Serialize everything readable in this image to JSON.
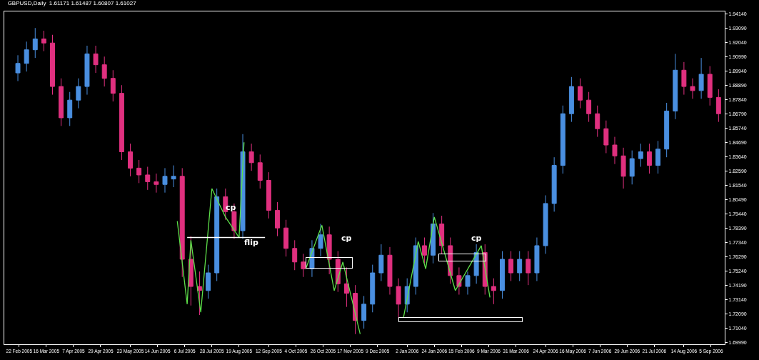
{
  "chart_data": {
    "type": "candlestick",
    "title": "GBPUSD,Daily  1.61171 1.61487 1.60807 1.61027",
    "x": [
      "2005-02-21",
      "2005-02-28",
      "2005-03-07",
      "2005-03-14",
      "2005-03-21",
      "2005-03-28",
      "2005-04-04",
      "2005-04-11",
      "2005-04-18",
      "2005-04-25",
      "2005-05-02",
      "2005-05-09",
      "2005-05-16",
      "2005-05-23",
      "2005-05-30",
      "2005-06-06",
      "2005-06-13",
      "2005-06-20",
      "2005-06-27",
      "2005-07-04",
      "2005-07-11",
      "2005-07-18",
      "2005-07-25",
      "2005-08-01",
      "2005-08-08",
      "2005-08-15",
      "2005-08-22",
      "2005-08-29",
      "2005-09-05",
      "2005-09-12",
      "2005-09-19",
      "2005-09-26",
      "2005-10-03",
      "2005-10-10",
      "2005-10-17",
      "2005-10-24",
      "2005-10-31",
      "2005-11-07",
      "2005-11-14",
      "2005-11-21",
      "2005-11-28",
      "2005-12-05",
      "2005-12-12",
      "2005-12-19",
      "2005-12-26",
      "2006-01-02",
      "2006-01-09",
      "2006-01-16",
      "2006-01-23",
      "2006-01-30",
      "2006-02-06",
      "2006-02-13",
      "2006-02-20",
      "2006-02-27",
      "2006-03-06",
      "2006-03-13",
      "2006-03-20",
      "2006-03-27",
      "2006-04-03",
      "2006-04-10",
      "2006-04-17",
      "2006-04-24",
      "2006-05-01",
      "2006-05-08",
      "2006-05-15",
      "2006-05-22",
      "2006-05-29",
      "2006-06-05",
      "2006-06-12",
      "2006-06-19",
      "2006-06-26",
      "2006-07-03",
      "2006-07-10",
      "2006-07-17",
      "2006-07-24",
      "2006-07-31",
      "2006-08-07",
      "2006-08-14",
      "2006-08-21",
      "2006-08-28",
      "2006-09-04",
      "2006-09-11"
    ],
    "ohlc": [
      [
        1.898,
        1.911,
        1.892,
        1.905
      ],
      [
        1.905,
        1.921,
        1.899,
        1.915
      ],
      [
        1.915,
        1.931,
        1.909,
        1.923
      ],
      [
        1.923,
        1.929,
        1.914,
        1.92
      ],
      [
        1.92,
        1.926,
        1.882,
        1.888
      ],
      [
        1.888,
        1.894,
        1.859,
        1.865
      ],
      [
        1.865,
        1.884,
        1.859,
        1.878
      ],
      [
        1.878,
        1.894,
        1.872,
        1.888
      ],
      [
        1.888,
        1.918,
        1.882,
        1.912
      ],
      [
        1.912,
        1.918,
        1.898,
        1.904
      ],
      [
        1.904,
        1.91,
        1.888,
        1.894
      ],
      [
        1.894,
        1.9,
        1.877,
        1.883
      ],
      [
        1.883,
        1.889,
        1.834,
        1.84
      ],
      [
        1.84,
        1.846,
        1.822,
        1.828
      ],
      [
        1.828,
        1.834,
        1.817,
        1.823
      ],
      [
        1.823,
        1.829,
        1.812,
        1.818
      ],
      [
        1.818,
        1.824,
        1.81,
        1.816
      ],
      [
        1.816,
        1.828,
        1.81,
        1.822
      ],
      [
        1.82,
        1.83,
        1.814,
        1.822
      ],
      [
        1.822,
        1.828,
        1.748,
        1.761
      ],
      [
        1.761,
        1.778,
        1.727,
        1.741
      ],
      [
        1.741,
        1.752,
        1.72,
        1.738
      ],
      [
        1.738,
        1.757,
        1.732,
        1.751
      ],
      [
        1.751,
        1.813,
        1.745,
        1.807
      ],
      [
        1.807,
        1.813,
        1.79,
        1.796
      ],
      [
        1.796,
        1.802,
        1.776,
        1.782
      ],
      [
        1.782,
        1.853,
        1.776,
        1.84
      ],
      [
        1.84,
        1.846,
        1.826,
        1.832
      ],
      [
        1.832,
        1.838,
        1.813,
        1.819
      ],
      [
        1.819,
        1.825,
        1.791,
        1.797
      ],
      [
        1.797,
        1.803,
        1.778,
        1.784
      ],
      [
        1.784,
        1.79,
        1.763,
        1.769
      ],
      [
        1.769,
        1.775,
        1.753,
        1.759
      ],
      [
        1.759,
        1.765,
        1.748,
        1.754
      ],
      [
        1.754,
        1.775,
        1.748,
        1.769
      ],
      [
        1.769,
        1.787,
        1.763,
        1.779
      ],
      [
        1.779,
        1.785,
        1.75,
        1.761
      ],
      [
        1.761,
        1.767,
        1.737,
        1.743
      ],
      [
        1.743,
        1.755,
        1.726,
        1.736
      ],
      [
        1.736,
        1.742,
        1.706,
        1.716
      ],
      [
        1.716,
        1.734,
        1.71,
        1.728
      ],
      [
        1.728,
        1.757,
        1.722,
        1.751
      ],
      [
        1.751,
        1.772,
        1.745,
        1.764
      ],
      [
        1.764,
        1.77,
        1.735,
        1.741
      ],
      [
        1.741,
        1.747,
        1.718,
        1.728
      ],
      [
        1.728,
        1.747,
        1.722,
        1.741
      ],
      [
        1.741,
        1.777,
        1.735,
        1.771
      ],
      [
        1.771,
        1.777,
        1.758,
        1.764
      ],
      [
        1.764,
        1.795,
        1.758,
        1.787
      ],
      [
        1.787,
        1.793,
        1.765,
        1.771
      ],
      [
        1.771,
        1.777,
        1.743,
        1.749
      ],
      [
        1.749,
        1.755,
        1.735,
        1.741
      ],
      [
        1.741,
        1.752,
        1.735,
        1.749
      ],
      [
        1.749,
        1.772,
        1.743,
        1.766
      ],
      [
        1.766,
        1.772,
        1.735,
        1.741
      ],
      [
        1.741,
        1.747,
        1.728,
        1.738
      ],
      [
        1.738,
        1.767,
        1.732,
        1.761
      ],
      [
        1.761,
        1.767,
        1.745,
        1.751
      ],
      [
        1.751,
        1.767,
        1.745,
        1.761
      ],
      [
        1.761,
        1.767,
        1.742,
        1.751
      ],
      [
        1.751,
        1.777,
        1.745,
        1.771
      ],
      [
        1.771,
        1.808,
        1.765,
        1.802
      ],
      [
        1.802,
        1.836,
        1.796,
        1.83
      ],
      [
        1.83,
        1.874,
        1.824,
        1.868
      ],
      [
        1.868,
        1.895,
        1.862,
        1.888
      ],
      [
        1.888,
        1.894,
        1.872,
        1.878
      ],
      [
        1.878,
        1.884,
        1.862,
        1.868
      ],
      [
        1.868,
        1.874,
        1.851,
        1.857
      ],
      [
        1.857,
        1.863,
        1.839,
        1.845
      ],
      [
        1.845,
        1.851,
        1.831,
        1.837
      ],
      [
        1.837,
        1.843,
        1.813,
        1.822
      ],
      [
        1.822,
        1.841,
        1.816,
        1.835
      ],
      [
        1.835,
        1.846,
        1.829,
        1.84
      ],
      [
        1.84,
        1.846,
        1.824,
        1.83
      ],
      [
        1.83,
        1.848,
        1.824,
        1.842
      ],
      [
        1.842,
        1.876,
        1.836,
        1.87
      ],
      [
        1.87,
        1.912,
        1.864,
        1.9
      ],
      [
        1.9,
        1.906,
        1.882,
        1.888
      ],
      [
        1.888,
        1.894,
        1.879,
        1.885
      ],
      [
        1.885,
        1.909,
        1.879,
        1.897
      ],
      [
        1.897,
        1.903,
        1.874,
        1.88
      ],
      [
        1.88,
        1.886,
        1.862,
        1.868
      ]
    ],
    "colors": [
      "#4a8fe0",
      "#4a8fe0",
      "#4a8fe0",
      "#e0307f",
      "#e0307f",
      "#e0307f",
      "#4a8fe0",
      "#4a8fe0",
      "#4a8fe0",
      "#e0307f",
      "#e0307f",
      "#e0307f",
      "#e0307f",
      "#e0307f",
      "#e0307f",
      "#e0307f",
      "#e0307f",
      "#4a8fe0",
      "#4a8fe0",
      "#e0307f",
      "#e0307f",
      "#e0307f",
      "#4a8fe0",
      "#4a8fe0",
      "#e0307f",
      "#e0307f",
      "#4a8fe0",
      "#e0307f",
      "#e0307f",
      "#e0307f",
      "#e0307f",
      "#e0307f",
      "#e0307f",
      "#e0307f",
      "#4a8fe0",
      "#4a8fe0",
      "#e0307f",
      "#e0307f",
      "#e0307f",
      "#e0307f",
      "#4a8fe0",
      "#4a8fe0",
      "#4a8fe0",
      "#e0307f",
      "#e0307f",
      "#4a8fe0",
      "#4a8fe0",
      "#e0307f",
      "#4a8fe0",
      "#e0307f",
      "#e0307f",
      "#e0307f",
      "#4a8fe0",
      "#4a8fe0",
      "#e0307f",
      "#e0307f",
      "#4a8fe0",
      "#e0307f",
      "#4a8fe0",
      "#e0307f",
      "#4a8fe0",
      "#4a8fe0",
      "#4a8fe0",
      "#4a8fe0",
      "#4a8fe0",
      "#e0307f",
      "#e0307f",
      "#e0307f",
      "#e0307f",
      "#e0307f",
      "#e0307f",
      "#4a8fe0",
      "#4a8fe0",
      "#e0307f",
      "#4a8fe0",
      "#4a8fe0",
      "#4a8fe0",
      "#e0307f",
      "#e0307f",
      "#4a8fe0",
      "#e0307f",
      "#e0307f"
    ],
    "series": [
      {
        "type": "line",
        "color": "#5ee04a",
        "x": [
          "2005-06-30",
          "2005-07-08",
          "2005-07-11",
          "2005-07-19",
          "2005-07-28",
          "2005-08-08",
          "2005-08-19",
          "2005-08-23"
        ],
        "values": [
          1.789,
          1.728,
          1.775,
          1.722,
          1.813,
          1.792,
          1.777,
          1.847
        ]
      },
      {
        "type": "line",
        "color": "#5ee04a",
        "x": [
          "2005-10-12",
          "2005-10-25",
          "2005-11-04",
          "2005-11-11",
          "2005-11-25"
        ],
        "values": [
          1.754,
          1.786,
          1.738,
          1.759,
          1.706
        ]
      },
      {
        "type": "line",
        "color": "#5ee04a",
        "x": [
          "2005-12-30",
          "2006-01-11",
          "2006-01-17",
          "2006-01-24",
          "2006-02-10",
          "2006-03-03",
          "2006-03-10"
        ],
        "values": [
          1.718,
          1.774,
          1.754,
          1.792,
          1.738,
          1.771,
          1.733
        ]
      },
      {
        "type": "line",
        "color": "#ffffff",
        "x": [
          "2005-07-08",
          "2005-09-09"
        ],
        "values": [
          1.777,
          1.777
        ]
      }
    ],
    "annotations": [
      "cp",
      "flip",
      "cp",
      "cp"
    ],
    "xlim": [
      "2005-02-10",
      "2006-09-16"
    ],
    "xticks": [
      {
        "value": "2005-02-22",
        "label": "22 Feb 2005"
      },
      {
        "value": "2005-03-16",
        "label": "16 Mar 2005"
      },
      {
        "value": "2005-04-07",
        "label": "7 Apr 2005"
      },
      {
        "value": "2005-04-29",
        "label": "29 Apr 2005"
      },
      {
        "value": "2005-05-23",
        "label": "23 May 2005"
      },
      {
        "value": "2005-06-14",
        "label": "14 Jun 2005"
      },
      {
        "value": "2005-07-06",
        "label": "6 Jul 2005"
      },
      {
        "value": "2005-07-28",
        "label": "28 Jul 2005"
      },
      {
        "value": "2005-08-19",
        "label": "19 Aug 2005"
      },
      {
        "value": "2005-09-12",
        "label": "12 Sep 2005"
      },
      {
        "value": "2005-10-04",
        "label": "4 Oct 2005"
      },
      {
        "value": "2005-10-26",
        "label": "26 Oct 2005"
      },
      {
        "value": "2005-11-17",
        "label": "17 Nov 2005"
      },
      {
        "value": "2005-12-09",
        "label": "9 Dec 2005"
      },
      {
        "value": "2006-01-02",
        "label": "2 Jan 2006"
      },
      {
        "value": "2006-01-24",
        "label": "24 Jan 2006"
      },
      {
        "value": "2006-02-15",
        "label": "15 Feb 2006"
      },
      {
        "value": "2006-03-09",
        "label": "9 Mar 2006"
      },
      {
        "value": "2006-03-31",
        "label": "31 Mar 2006"
      },
      {
        "value": "2006-04-24",
        "label": "24 Apr 2006"
      },
      {
        "value": "2006-05-16",
        "label": "16 May 2006"
      },
      {
        "value": "2006-06-07",
        "label": "7 Jun 2006"
      },
      {
        "value": "2006-06-29",
        "label": "29 Jun 2006"
      },
      {
        "value": "2006-07-21",
        "label": "21 Jul 2006"
      },
      {
        "value": "2006-08-14",
        "label": "14 Aug 2006"
      },
      {
        "value": "2006-09-05",
        "label": "5 Sep 2006"
      }
    ],
    "ylim": [
      1.6985,
      1.9432
    ],
    "yticks": [
      {
        "value": 1.6999,
        "label": "1.69990"
      },
      {
        "value": 1.7104,
        "label": "1.71040"
      },
      {
        "value": 1.7209,
        "label": "1.72090"
      },
      {
        "value": 1.7314,
        "label": "1.73140"
      },
      {
        "value": 1.7419,
        "label": "1.74190"
      },
      {
        "value": 1.7524,
        "label": "1.75240"
      },
      {
        "value": 1.7629,
        "label": "1.76290"
      },
      {
        "value": 1.7734,
        "label": "1.77340"
      },
      {
        "value": 1.7839,
        "label": "1.78390"
      },
      {
        "value": 1.7944,
        "label": "1.79440"
      },
      {
        "value": 1.8049,
        "label": "1.80490"
      },
      {
        "value": 1.8154,
        "label": "1.81540"
      },
      {
        "value": 1.8259,
        "label": "1.82590"
      },
      {
        "value": 1.8364,
        "label": "1.83640"
      },
      {
        "value": 1.8469,
        "label": "1.84690"
      },
      {
        "value": 1.8574,
        "label": "1.85740"
      },
      {
        "value": 1.8679,
        "label": "1.86790"
      },
      {
        "value": 1.8784,
        "label": "1.87840"
      },
      {
        "value": 1.8889,
        "label": "1.88890"
      },
      {
        "value": 1.8994,
        "label": "1.89940"
      },
      {
        "value": 1.9099,
        "label": "1.90990"
      },
      {
        "value": 1.9204,
        "label": "1.92040"
      },
      {
        "value": 1.9309,
        "label": "1.93090"
      },
      {
        "value": 1.9414,
        "label": "1.94140"
      }
    ]
  }
}
